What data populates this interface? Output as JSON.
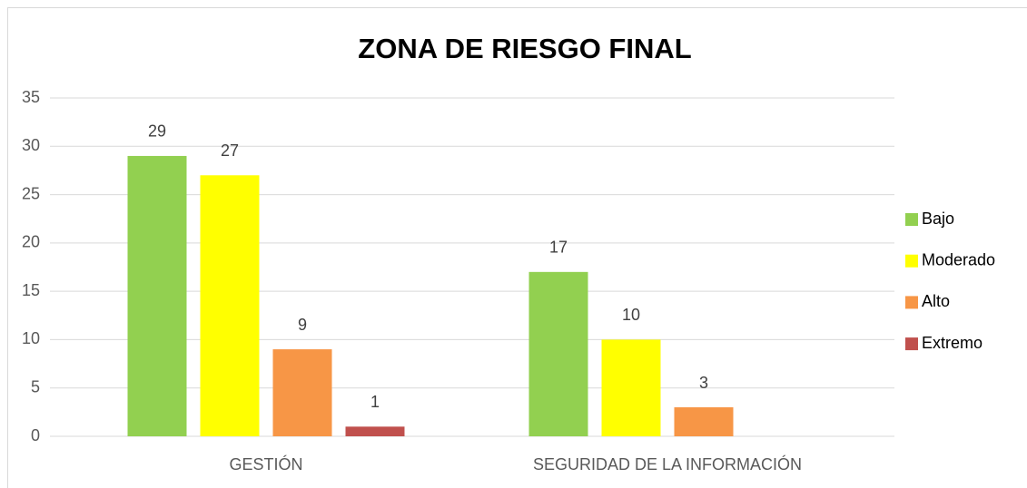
{
  "chart_data": {
    "type": "bar",
    "title": "ZONA DE RIESGO FINAL",
    "categories": [
      "GESTIÓN",
      "SEGURIDAD DE LA INFORMACIÓN"
    ],
    "series": [
      {
        "name": "Bajo",
        "color": "#92d050",
        "values": [
          29,
          17
        ]
      },
      {
        "name": "Moderado",
        "color": "#ffff00",
        "values": [
          27,
          10
        ]
      },
      {
        "name": "Alto",
        "color": "#f79646",
        "values": [
          9,
          3
        ]
      },
      {
        "name": "Extremo",
        "color": "#c0504d",
        "values": [
          1,
          null
        ]
      }
    ],
    "ylim": [
      0,
      35
    ],
    "yticks": [
      0,
      5,
      10,
      15,
      20,
      25,
      30,
      35
    ],
    "grid": true,
    "legend": "right"
  }
}
